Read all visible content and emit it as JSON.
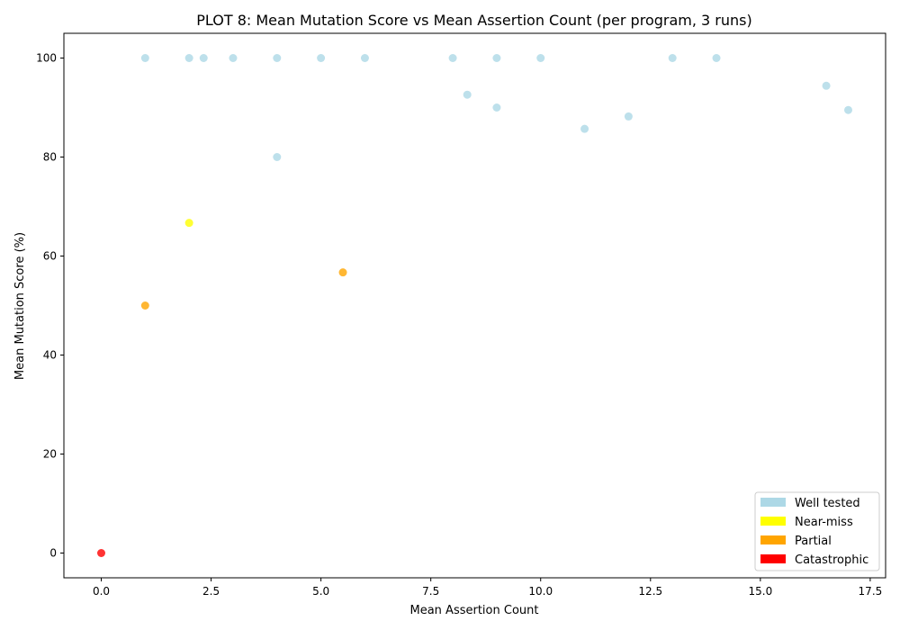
{
  "chart_data": {
    "type": "scatter",
    "title": "PLOT 8: Mean Mutation Score vs Mean Assertion Count (per program, 3 runs)",
    "xlabel": "Mean Assertion Count",
    "ylabel": "Mean Mutation Score (%)",
    "xlim": [
      -0.85,
      17.85
    ],
    "ylim": [
      -5,
      105
    ],
    "x_ticks": [
      "0.0",
      "2.5",
      "5.0",
      "7.5",
      "10.0",
      "12.5",
      "15.0",
      "17.5"
    ],
    "x_tick_values": [
      0,
      2.5,
      5,
      7.5,
      10,
      12.5,
      15,
      17.5
    ],
    "y_ticks": [
      "0",
      "20",
      "40",
      "60",
      "80",
      "100"
    ],
    "y_tick_values": [
      0,
      20,
      40,
      60,
      80,
      100
    ],
    "grid": false,
    "legend_position": "lower right",
    "series": [
      {
        "name": "Well tested",
        "color": "#add8e6",
        "points": [
          [
            1,
            100
          ],
          [
            2,
            100
          ],
          [
            2.33,
            100
          ],
          [
            3,
            100
          ],
          [
            4,
            100
          ],
          [
            5,
            100
          ],
          [
            6,
            100
          ],
          [
            8,
            100
          ],
          [
            9,
            100
          ],
          [
            10,
            100
          ],
          [
            13,
            100
          ],
          [
            14,
            100
          ],
          [
            8.33,
            92.6
          ],
          [
            9,
            90
          ],
          [
            11,
            85.7
          ],
          [
            12,
            88.2
          ],
          [
            16.5,
            94.4
          ],
          [
            17,
            89.5
          ],
          [
            4,
            80
          ]
        ]
      },
      {
        "name": "Near-miss",
        "color": "#ffff00",
        "points": [
          [
            2,
            66.7
          ]
        ]
      },
      {
        "name": "Partial",
        "color": "#ffa500",
        "points": [
          [
            1,
            50
          ],
          [
            5.5,
            56.7
          ]
        ]
      },
      {
        "name": "Catastrophic",
        "color": "#ff0000",
        "points": [
          [
            0,
            0
          ]
        ]
      }
    ]
  }
}
